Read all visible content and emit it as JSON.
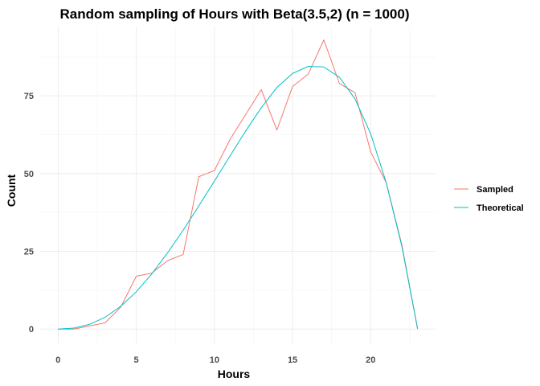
{
  "chart_data": {
    "type": "line",
    "title": "Random sampling of Hours with Beta(3.5,2) (n = 1000)",
    "xlabel": "Hours",
    "ylabel": "Count",
    "xlim": [
      -1.15,
      24.15
    ],
    "ylim": [
      -4.6,
      97.3
    ],
    "x_ticks": [
      0,
      5,
      10,
      15,
      20
    ],
    "y_ticks": [
      0,
      25,
      50,
      75
    ],
    "grid": true,
    "legend_position": "right",
    "x": [
      0,
      1,
      2,
      3,
      4,
      5,
      6,
      7,
      8,
      9,
      10,
      11,
      12,
      13,
      14,
      15,
      16,
      17,
      18,
      19,
      20,
      21,
      22,
      23
    ],
    "series": [
      {
        "name": "Sampled",
        "color": "#F8766D",
        "values": [
          0,
          0,
          1,
          2,
          7,
          17,
          18,
          22,
          24,
          49,
          51,
          61,
          69,
          77,
          64,
          78,
          82,
          93,
          79,
          76,
          57,
          47,
          27,
          0
        ]
      },
      {
        "name": "Theoretical",
        "color": "#00BFC4",
        "values": [
          0,
          0.3,
          1.5,
          3.8,
          7.3,
          12,
          17.8,
          24.5,
          31.8,
          39.6,
          47.6,
          55.7,
          63.7,
          71.2,
          77.7,
          82.2,
          84.5,
          84.3,
          81,
          74,
          62.8,
          47,
          26.5,
          0.2
        ]
      }
    ]
  }
}
